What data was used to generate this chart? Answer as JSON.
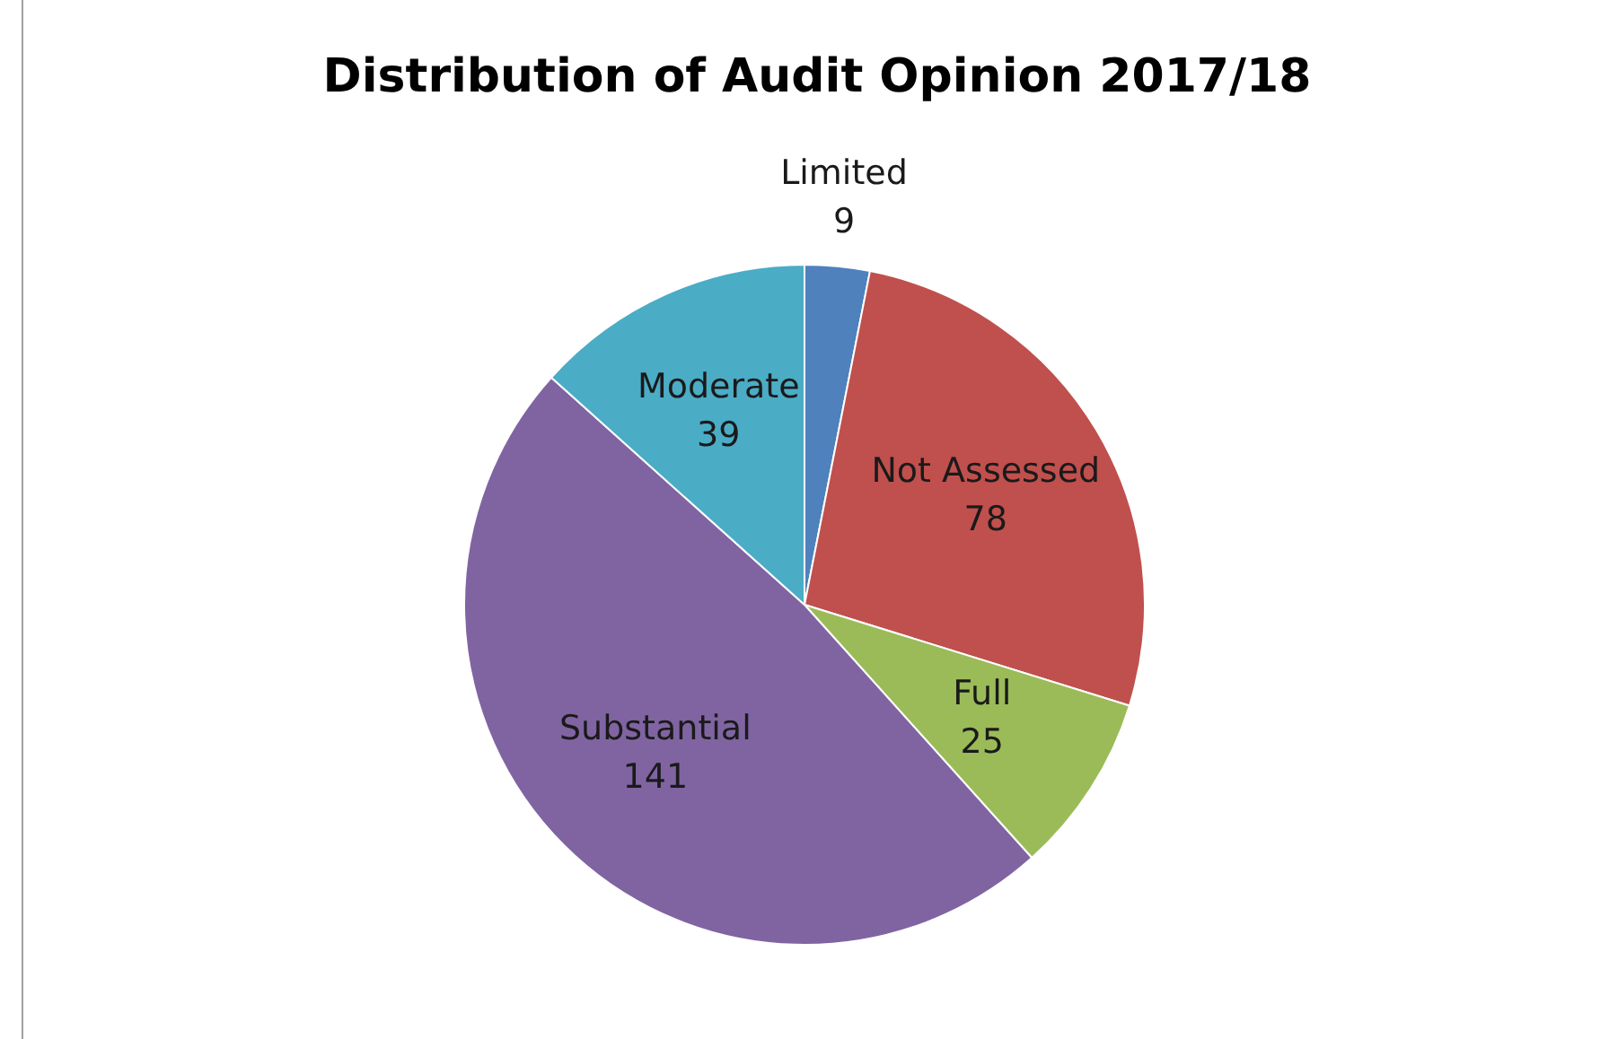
{
  "chart_data": {
    "type": "pie",
    "title": "Distribution of Audit Opinion 2017/18",
    "categories": [
      "Limited",
      "Not Assessed",
      "Full",
      "Substantial",
      "Moderate"
    ],
    "values": [
      9,
      78,
      25,
      141,
      39
    ],
    "colors": [
      "#4f81bd",
      "#c0504d",
      "#9bbb59",
      "#8064a2",
      "#4bacc6"
    ],
    "data_labels": true,
    "legend": false
  }
}
